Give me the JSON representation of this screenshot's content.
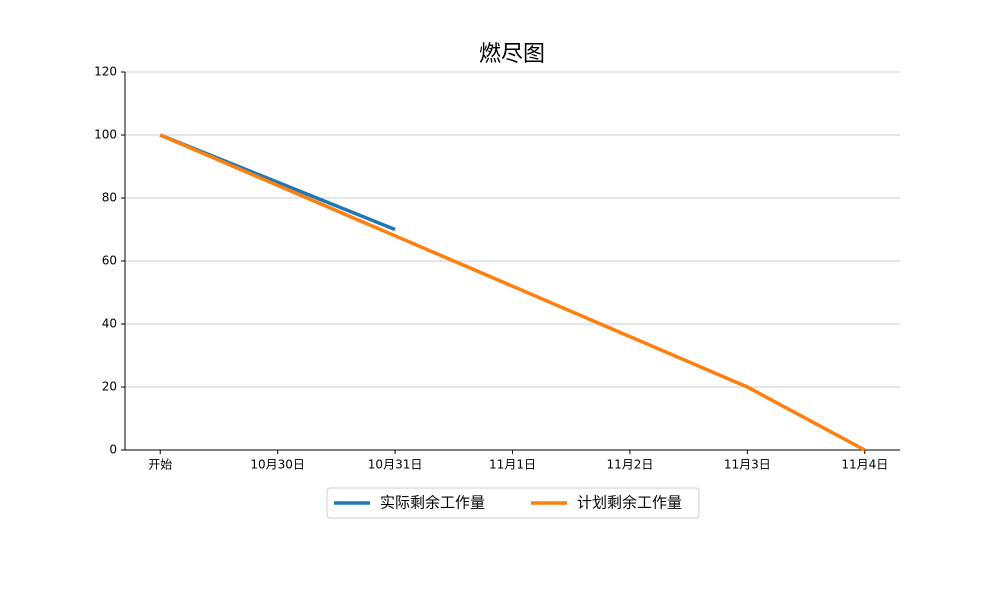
{
  "chart_data": {
    "type": "line",
    "title": "燃尽图",
    "categories": [
      "开始",
      "10月30日",
      "10月31日",
      "11月1日",
      "11月2日",
      "11月3日",
      "11月4日"
    ],
    "series": [
      {
        "name": "实际剩余工作量",
        "color": "#1f77b4",
        "values": [
          100,
          85,
          70,
          null,
          null,
          null,
          null
        ]
      },
      {
        "name": "计划剩余工作量",
        "color": "#ff7f0e",
        "values": [
          100,
          84,
          68,
          52,
          36,
          20,
          0
        ]
      }
    ],
    "ylim": [
      0,
      120
    ],
    "yticks": [
      0,
      20,
      40,
      60,
      80,
      100,
      120
    ],
    "grid": true,
    "legend": "bottom"
  }
}
